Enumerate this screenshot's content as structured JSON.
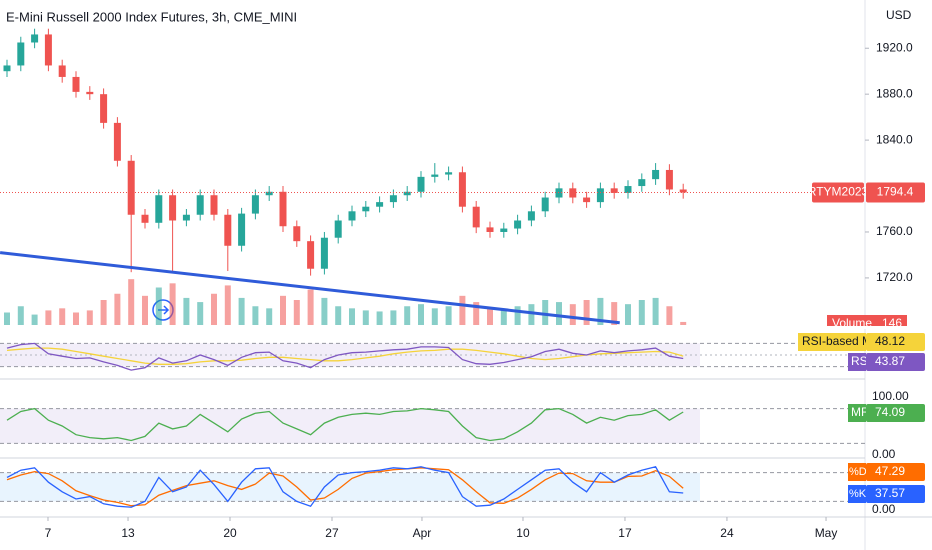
{
  "chart_data": {
    "type": "candlestick",
    "title": "E-Mini Russell 2000 Index Futures, 3h, CME_MINI",
    "currency": "USD",
    "up_color": "#26a69a",
    "down_color": "#ef5350",
    "open": [
      1900,
      1905,
      1925,
      1932,
      1905,
      1895,
      1882,
      1880,
      1855,
      1822,
      1775,
      1768,
      1792,
      1770,
      1775,
      1792,
      1775,
      1748,
      1776,
      1792,
      1795,
      1765,
      1752,
      1728,
      1755,
      1770,
      1778,
      1782,
      1786,
      1792,
      1795,
      1808,
      1810,
      1812,
      1782,
      1764,
      1760,
      1763,
      1770,
      1778,
      1790,
      1798,
      1790,
      1786,
      1798,
      1794,
      1800,
      1806,
      1814,
      1797
    ],
    "high": [
      1910,
      1930,
      1937,
      1937,
      1910,
      1900,
      1887,
      1885,
      1860,
      1827,
      1780,
      1797,
      1797,
      1780,
      1797,
      1797,
      1780,
      1781,
      1797,
      1800,
      1800,
      1770,
      1757,
      1760,
      1775,
      1783,
      1787,
      1791,
      1797,
      1800,
      1813,
      1820,
      1817,
      1817,
      1787,
      1769,
      1768,
      1775,
      1783,
      1795,
      1803,
      1803,
      1795,
      1803,
      1803,
      1805,
      1811,
      1820,
      1819,
      1802
    ],
    "low": [
      1895,
      1900,
      1920,
      1900,
      1890,
      1877,
      1875,
      1850,
      1817,
      1725,
      1763,
      1763,
      1726,
      1765,
      1770,
      1770,
      1726,
      1743,
      1771,
      1787,
      1760,
      1747,
      1722,
      1723,
      1750,
      1765,
      1773,
      1777,
      1781,
      1787,
      1790,
      1803,
      1805,
      1777,
      1759,
      1755,
      1755,
      1758,
      1765,
      1773,
      1785,
      1785,
      1781,
      1781,
      1789,
      1789,
      1795,
      1801,
      1792,
      1789
    ],
    "close": [
      1905,
      1925,
      1932,
      1905,
      1895,
      1882,
      1880,
      1855,
      1822,
      1775,
      1768,
      1792,
      1770,
      1775,
      1792,
      1775,
      1748,
      1776,
      1792,
      1795,
      1765,
      1752,
      1728,
      1755,
      1770,
      1778,
      1782,
      1786,
      1792,
      1795,
      1808,
      1810,
      1812,
      1782,
      1764,
      1760,
      1763,
      1770,
      1778,
      1790,
      1798,
      1790,
      1786,
      1798,
      1794,
      1800,
      1806,
      1814,
      1797,
      1794.4
    ],
    "ylim": [
      1679,
      1962
    ],
    "yticks": [
      {
        "value": 1720,
        "label": "1720.0"
      },
      {
        "value": 1760,
        "label": "1760.0"
      },
      {
        "value": 1840,
        "label": "1840.0"
      },
      {
        "value": 1880,
        "label": "1880.0"
      },
      {
        "value": 1920,
        "label": "1920.0"
      }
    ],
    "xticks": [
      {
        "value": 2.97,
        "label": "7"
      },
      {
        "value": 8.77,
        "label": "13"
      },
      {
        "value": 16.16,
        "label": "20"
      },
      {
        "value": 23.55,
        "label": "27"
      },
      {
        "value": 30.07,
        "label": "Apr"
      },
      {
        "value": 37.39,
        "label": "10"
      },
      {
        "value": 44.78,
        "label": "17"
      },
      {
        "value": 52.17,
        "label": "24"
      },
      {
        "value": 59.35,
        "label": "May"
      }
    ],
    "symbol": "RTYM2023",
    "trendline": {
      "x": [
        -0.5,
        44.4
      ],
      "y": [
        1742,
        1681
      ],
      "color": "#2f5bd9"
    },
    "volume": {
      "name": "Volume",
      "ylim": [
        0,
        2400
      ],
      "values": [
        600,
        900,
        500,
        700,
        800,
        600,
        700,
        1200,
        1500,
        2200,
        1400,
        1800,
        2000,
        1300,
        1100,
        1500,
        1900,
        1300,
        900,
        800,
        1400,
        1200,
        1700,
        1300,
        900,
        800,
        700,
        650,
        700,
        900,
        1000,
        800,
        900,
        1400,
        1100,
        800,
        700,
        900,
        1000,
        1200,
        1100,
        1000,
        1200,
        1300,
        1100,
        1000,
        1200,
        1300,
        900,
        146
      ]
    },
    "rsi": {
      "name": "RSI",
      "color": "#7e57c2",
      "ylim": [
        12,
        88
      ],
      "bands": [
        30,
        70
      ],
      "mid": 50,
      "values": [
        62,
        68,
        70,
        52,
        48,
        44,
        45,
        38,
        32,
        24,
        28,
        45,
        36,
        40,
        50,
        42,
        32,
        46,
        54,
        55,
        40,
        36,
        28,
        42,
        50,
        54,
        55,
        57,
        59,
        60,
        64,
        64,
        63,
        42,
        35,
        34,
        37,
        42,
        47,
        56,
        60,
        53,
        50,
        57,
        54,
        57,
        59,
        62,
        48,
        43.87
      ],
      "ma": {
        "name": "RSI-based MA",
        "color": "#f5d33a",
        "values": [
          58,
          60,
          62,
          62,
          60,
          56,
          52,
          48,
          44,
          40,
          36,
          34,
          34,
          35,
          38,
          40,
          40,
          41,
          44,
          46,
          46,
          44,
          42,
          40,
          40,
          42,
          45,
          48,
          52,
          55,
          57,
          58,
          60,
          60,
          58,
          55,
          52,
          48,
          44,
          42,
          44,
          47,
          50,
          52,
          53,
          54,
          55,
          56,
          55,
          48.12
        ]
      }
    },
    "mfi": {
      "name": "MF",
      "color": "#4caf50",
      "ylim": [
        0,
        100
      ],
      "bands": [
        20,
        80
      ],
      "yticks": [
        {
          "value": 0,
          "label": "0.00"
        },
        {
          "value": 100,
          "label": "100.00"
        }
      ],
      "values": [
        60,
        75,
        80,
        60,
        50,
        35,
        30,
        28,
        30,
        25,
        32,
        55,
        45,
        50,
        70,
        55,
        40,
        62,
        72,
        75,
        55,
        45,
        35,
        55,
        65,
        70,
        72,
        70,
        75,
        76,
        80,
        78,
        75,
        50,
        30,
        25,
        28,
        40,
        55,
        78,
        80,
        70,
        55,
        65,
        60,
        68,
        70,
        78,
        60,
        74.09
      ]
    },
    "stoch": {
      "ylim": [
        0,
        100
      ],
      "bands": [
        20,
        80
      ],
      "yticks": [
        {
          "value": 0,
          "label": "0.00"
        }
      ],
      "d": {
        "name": "%D",
        "color": "#ff6d00",
        "values": [
          65,
          75,
          82,
          78,
          63,
          42,
          32,
          23,
          18,
          11,
          13,
          33,
          43,
          53,
          58,
          63,
          53,
          45,
          56,
          79,
          73,
          50,
          23,
          27,
          45,
          68,
          79,
          82,
          86,
          88,
          90,
          88,
          86,
          65,
          40,
          17,
          16,
          27,
          45,
          65,
          79,
          78,
          63,
          60,
          60,
          72,
          73,
          84,
          72,
          47.29
        ]
      },
      "k": {
        "name": "%K",
        "color": "#2962ff",
        "values": [
          70,
          85,
          90,
          60,
          40,
          25,
          30,
          15,
          10,
          8,
          20,
          70,
          40,
          50,
          85,
          55,
          20,
          60,
          88,
          90,
          40,
          20,
          10,
          50,
          75,
          80,
          82,
          85,
          90,
          88,
          92,
          85,
          80,
          30,
          10,
          12,
          25,
          45,
          65,
          85,
          88,
          60,
          40,
          80,
          60,
          75,
          85,
          92,
          40,
          37.57
        ]
      }
    }
  }
}
